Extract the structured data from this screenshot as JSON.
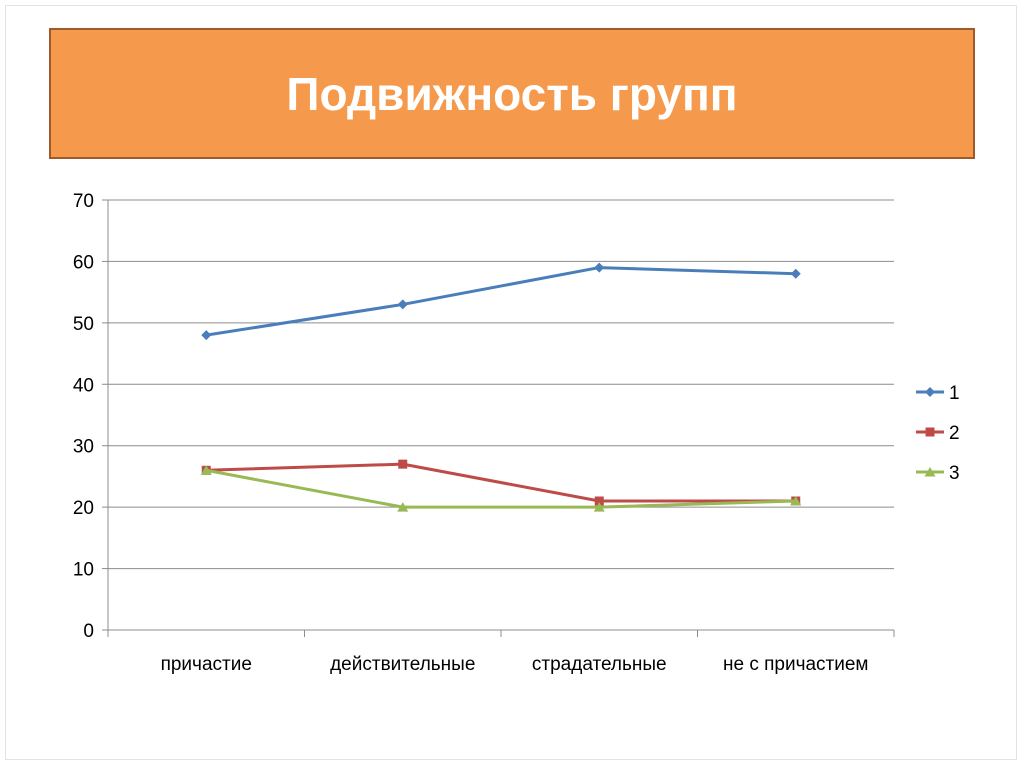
{
  "title": "Подвижность групп",
  "chart_data": {
    "type": "line",
    "categories": [
      "причастие",
      "действительные",
      "страдательные",
      "не с причастием"
    ],
    "series": [
      {
        "name": "1",
        "values": [
          48,
          53,
          59,
          58
        ],
        "color": "#4a7ebb",
        "marker": "diamond"
      },
      {
        "name": "2",
        "values": [
          26,
          27,
          21,
          21
        ],
        "color": "#be4b48",
        "marker": "square"
      },
      {
        "name": "3",
        "values": [
          26,
          20,
          20,
          21
        ],
        "color": "#98b954",
        "marker": "triangle"
      }
    ],
    "ylim": [
      0,
      70
    ],
    "yticks": [
      0,
      10,
      20,
      30,
      40,
      50,
      60,
      70
    ],
    "grid": true,
    "legend": "right"
  }
}
